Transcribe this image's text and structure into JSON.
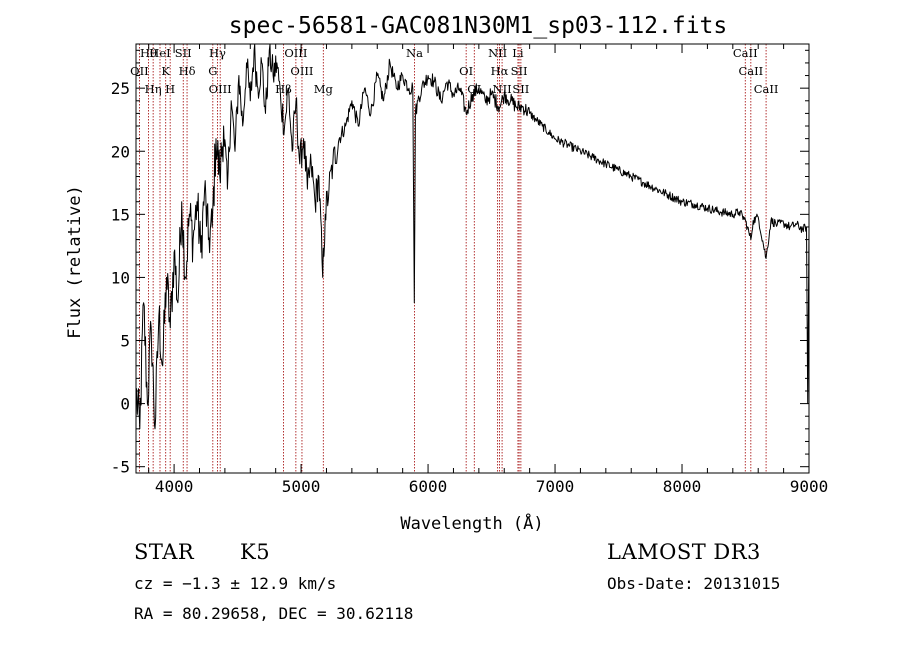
{
  "chart_data": {
    "type": "line",
    "title": "spec-56581-GAC081N30M1_sp03-112.fits",
    "xlabel": "Wavelength (Å)",
    "ylabel": "Flux (relative)",
    "xlim": [
      3700,
      9000
    ],
    "ylim": [
      -5.5,
      28.5
    ],
    "x_ticks": [
      4000,
      5000,
      6000,
      7000,
      8000,
      9000
    ],
    "y_ticks": [
      -5,
      0,
      5,
      10,
      15,
      20,
      25
    ],
    "series": [
      {
        "name": "flux",
        "x": [
          3700,
          3730,
          3760,
          3790,
          3820,
          3850,
          3880,
          3910,
          3940,
          3970,
          4000,
          4030,
          4060,
          4090,
          4120,
          4150,
          4180,
          4210,
          4240,
          4270,
          4300,
          4330,
          4360,
          4390,
          4420,
          4450,
          4480,
          4510,
          4540,
          4570,
          4600,
          4630,
          4660,
          4690,
          4720,
          4750,
          4780,
          4810,
          4840,
          4870,
          4900,
          4930,
          4960,
          4990,
          5020,
          5050,
          5080,
          5110,
          5140,
          5170,
          5190,
          5220,
          5250,
          5300,
          5350,
          5400,
          5450,
          5500,
          5550,
          5600,
          5650,
          5700,
          5750,
          5800,
          5850,
          5880,
          5892,
          5900,
          5920,
          5950,
          6000,
          6050,
          6100,
          6150,
          6200,
          6250,
          6300,
          6350,
          6400,
          6450,
          6500,
          6563,
          6600,
          6650,
          6700,
          6750,
          6800,
          6850,
          6900,
          6950,
          7000,
          7100,
          7200,
          7300,
          7400,
          7500,
          7600,
          7700,
          7800,
          7900,
          8000,
          8100,
          8200,
          8300,
          8400,
          8450,
          8500,
          8542,
          8560,
          8600,
          8662,
          8700,
          8750,
          8800,
          8850,
          8900,
          8950,
          8980,
          8990,
          9000
        ],
        "y": [
          1,
          -2,
          8,
          0,
          6,
          -2,
          7,
          3,
          10,
          6,
          12,
          8,
          16,
          10,
          15,
          13,
          16,
          12,
          17,
          13,
          14,
          21,
          18,
          22,
          17,
          24,
          20,
          26,
          22,
          27,
          24,
          28,
          25,
          27,
          23,
          28,
          26,
          27,
          24,
          22,
          25,
          20,
          24,
          19,
          21,
          17,
          19,
          16,
          18,
          10,
          15,
          17,
          19,
          21,
          22,
          24,
          22,
          25,
          23,
          26,
          24,
          27,
          25,
          26,
          25,
          25,
          8,
          23,
          24,
          25,
          26,
          25.5,
          24,
          25.5,
          24.5,
          25,
          23,
          24.5,
          25,
          24,
          24.5,
          23.5,
          24.5,
          24,
          23.5,
          23.5,
          23,
          22.5,
          22,
          21.5,
          21,
          20.5,
          20,
          19.5,
          19,
          18.5,
          18,
          17.5,
          17,
          16.5,
          16,
          15.8,
          15.5,
          15.2,
          15,
          15.2,
          14.5,
          13,
          14.5,
          14.8,
          11.5,
          14.5,
          14.2,
          14.3,
          14,
          14.2,
          13.8,
          14,
          0,
          14
        ]
      }
    ],
    "spectral_lines": [
      {
        "label": "Hθ",
        "x": 3798
      },
      {
        "label": "OII",
        "x": 3727
      },
      {
        "label": "Hη",
        "x": 3835
      },
      {
        "label": "HeI",
        "x": 3889
      },
      {
        "label": "K",
        "x": 3934
      },
      {
        "label": "H",
        "x": 3969
      },
      {
        "label": "SII",
        "x": 4072
      },
      {
        "label": "Hδ",
        "x": 4102
      },
      {
        "label": "OIII",
        "x": 4363
      },
      {
        "label": "Hγ",
        "x": 4341
      },
      {
        "label": "G",
        "x": 4305
      },
      {
        "label": "Hβ",
        "x": 4861
      },
      {
        "label": "OIII",
        "x": 4959
      },
      {
        "label": "OIII",
        "x": 5007
      },
      {
        "label": "Mg",
        "x": 5175
      },
      {
        "label": "Na",
        "x": 5893
      },
      {
        "label": "OI",
        "x": 6300
      },
      {
        "label": "OI",
        "x": 6364
      },
      {
        "label": "NII",
        "x": 6548
      },
      {
        "label": "Hα",
        "x": 6563
      },
      {
        "label": "NII",
        "x": 6583
      },
      {
        "label": "Li",
        "x": 6708
      },
      {
        "label": "SII",
        "x": 6717
      },
      {
        "label": "SII",
        "x": 6731
      },
      {
        "label": "CaII",
        "x": 8498
      },
      {
        "label": "CaII",
        "x": 8542
      },
      {
        "label": "CaII",
        "x": 8662
      }
    ]
  },
  "info": {
    "class": "STAR",
    "subclass": "K5",
    "survey": "LAMOST DR3",
    "redshift": "cz = −1.3 ± 12.9 km/s",
    "obs_date": "Obs-Date: 20131015",
    "coords": "RA =  80.29658, DEC =  30.62118"
  },
  "colors": {
    "spectrum": "#000000",
    "line_marker": "#a00000",
    "axes": "#000000"
  }
}
